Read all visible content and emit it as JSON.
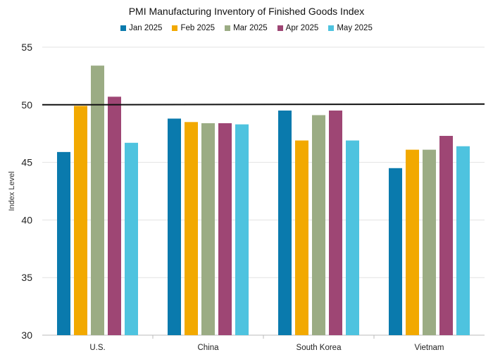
{
  "chart_data": {
    "type": "bar",
    "title": "PMI Manufacturing Inventory of Finished Goods Index",
    "ylabel": "Index Level",
    "ylim": [
      30,
      55
    ],
    "yticks": [
      30,
      35,
      40,
      45,
      50,
      55
    ],
    "categories": [
      "U.S.",
      "China",
      "South Korea",
      "Vietnam"
    ],
    "reference_line": 50,
    "legend": "top",
    "grid": true,
    "series": [
      {
        "name": "Jan 2025",
        "color": "#0a7aad",
        "values": [
          45.9,
          48.8,
          49.5,
          44.5
        ]
      },
      {
        "name": "Feb 2025",
        "color": "#f2a900",
        "values": [
          49.9,
          48.5,
          46.9,
          46.1
        ]
      },
      {
        "name": "Mar 2025",
        "color": "#9bac84",
        "values": [
          53.4,
          48.4,
          49.1,
          46.1
        ]
      },
      {
        "name": "Apr 2025",
        "color": "#9e4674",
        "values": [
          50.7,
          48.4,
          49.5,
          47.3
        ]
      },
      {
        "name": "May 2025",
        "color": "#4ec3df",
        "values": [
          46.7,
          48.3,
          46.9,
          46.4
        ]
      }
    ]
  }
}
